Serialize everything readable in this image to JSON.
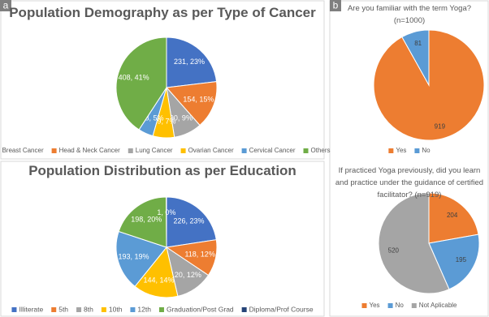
{
  "panel_labels": [
    "a",
    "b"
  ],
  "chart_data": [
    {
      "type": "pie",
      "title": "Population Demography as per Type of Cancer",
      "categories": [
        "Breast Cancer",
        "Head & Neck Cancer",
        "Lung Cancer",
        "Ovarian Cancer",
        "Cervical Cancer",
        "Others"
      ],
      "values": [
        231,
        154,
        90,
        69,
        48,
        408
      ],
      "value_labels": [
        "231, 23%",
        "154, 15%",
        "90, 9%",
        "69, 7%",
        "48, 5%",
        "408, 41%"
      ],
      "colors": [
        "#4472c4",
        "#ed7d31",
        "#a5a5a5",
        "#ffc000",
        "#5b9bd5",
        "#70ad47"
      ]
    },
    {
      "type": "pie",
      "title": "Population Distribution as per Education",
      "categories": [
        "Illiterate",
        "5th",
        "8th",
        "10th",
        "12th",
        "Graduation/Post Grad",
        "Diploma/Prof Course"
      ],
      "values": [
        226,
        118,
        120,
        144,
        193,
        198,
        1
      ],
      "value_labels": [
        "226, 23%",
        "118, 12%",
        "120, 12%",
        "144, 14%",
        "193, 19%",
        "198, 20%",
        "1, 0%"
      ],
      "colors": [
        "#4472c4",
        "#ed7d31",
        "#a5a5a5",
        "#ffc000",
        "#5b9bd5",
        "#70ad47",
        "#264478"
      ]
    },
    {
      "type": "pie",
      "title": "Are you familiar with the term Yoga? (n=1000)",
      "categories": [
        "Yes",
        "No"
      ],
      "values": [
        919,
        81
      ],
      "colors": [
        "#ed7d31",
        "#5b9bd5"
      ]
    },
    {
      "type": "pie",
      "title": "If practiced Yoga previously, did you learn and practice under the guidance of certified facilitator? (n=919)",
      "categories": [
        "Yes",
        "No",
        "Not Aplicable"
      ],
      "values": [
        204,
        195,
        520
      ],
      "colors": [
        "#ed7d31",
        "#5b9bd5",
        "#a5a5a5"
      ]
    }
  ]
}
